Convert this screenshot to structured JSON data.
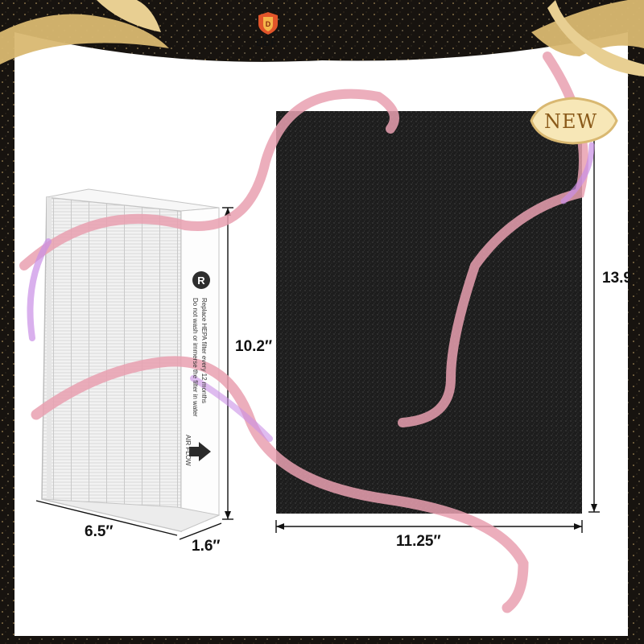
{
  "brand": {
    "name": "DDF",
    "icon": "ddf-shield-logo"
  },
  "badge": {
    "text": "NEW"
  },
  "hepa_filter": {
    "label_logo": "R",
    "label_line1": "Replace HEPA filter every 12 months",
    "label_line2": "Do not wash or immerse the filter in water",
    "airflow_text": "AIR FLOW",
    "icons": [
      "airflow-arrow-icon"
    ]
  },
  "carbon_filter": {
    "color": "#1c1c1c"
  },
  "dimensions": {
    "hepa_height": "10.2″",
    "hepa_width": "6.5″",
    "hepa_depth": "1.6″",
    "carbon_width": "11.25″",
    "carbon_height": "13.9"
  },
  "colors": {
    "ribbon": "#e9a0b0",
    "gold": "#d9b871",
    "frame": "#1a1612"
  }
}
